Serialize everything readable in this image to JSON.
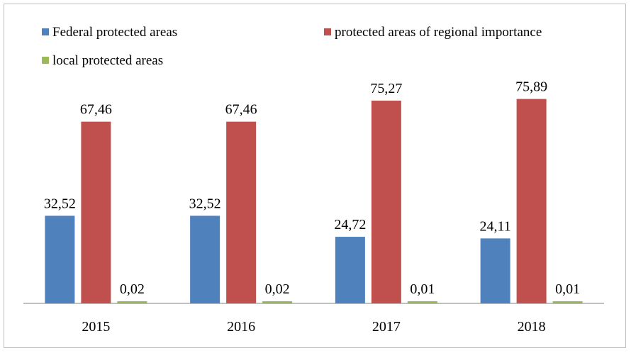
{
  "chart_data": {
    "type": "bar",
    "categories": [
      "2015",
      "2016",
      "2017",
      "2018"
    ],
    "series": [
      {
        "name": "Federal protected areas",
        "color": "#4f81bd",
        "values": [
          32.52,
          32.52,
          24.72,
          24.11
        ],
        "labels": [
          "32,52",
          "32,52",
          "24,72",
          "24,11"
        ]
      },
      {
        "name": "protected areas of regional importance",
        "color": "#c0504d",
        "values": [
          67.46,
          67.46,
          75.27,
          75.89
        ],
        "labels": [
          "67,46",
          "67,46",
          "75,27",
          "75,89"
        ]
      },
      {
        "name": "local protected areas",
        "color": "#9bbb59",
        "values": [
          0.02,
          0.02,
          0.01,
          0.01
        ],
        "labels": [
          "0,02",
          "0,02",
          "0,01",
          "0,01"
        ]
      }
    ],
    "ylim": [
      0,
      100
    ],
    "grid": false,
    "legend_position": "top"
  }
}
